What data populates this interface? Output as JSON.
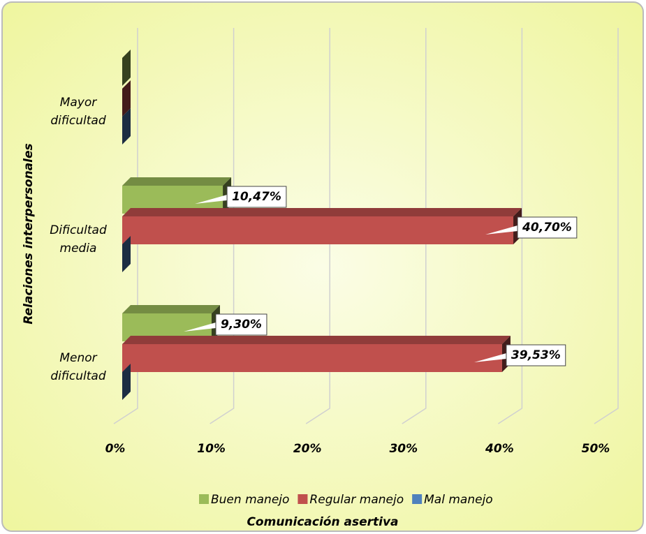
{
  "chart_data": {
    "type": "bar",
    "orientation": "horizontal",
    "categories": [
      "Mayor dificultad",
      "Dificultad media",
      "Menor dificultad"
    ],
    "series": [
      {
        "name": "Buen manejo",
        "color": "#9bbb59",
        "values": [
          0,
          10.47,
          9.3
        ],
        "value_labels": [
          null,
          "10,47%",
          "9,30%"
        ]
      },
      {
        "name": "Regular manejo",
        "color": "#c0504d",
        "values": [
          0,
          40.7,
          39.53
        ],
        "value_labels": [
          null,
          "40,70%",
          "39,53%"
        ]
      },
      {
        "name": "Mal manejo",
        "color": "#4f81bd",
        "values": [
          0,
          0,
          0
        ],
        "value_labels": [
          null,
          null,
          null
        ]
      }
    ],
    "xlim": [
      0,
      50
    ],
    "xticks": [
      {
        "value": 0,
        "label": "0%"
      },
      {
        "value": 10,
        "label": "10%"
      },
      {
        "value": 20,
        "label": "20%"
      },
      {
        "value": 30,
        "label": "30%"
      },
      {
        "value": 40,
        "label": "40%"
      },
      {
        "value": 50,
        "label": "50%"
      }
    ],
    "xlabel": "Comunicación asertiva",
    "ylabel": "Relaciones interpersonales",
    "grid": true,
    "legend": "bottom"
  }
}
